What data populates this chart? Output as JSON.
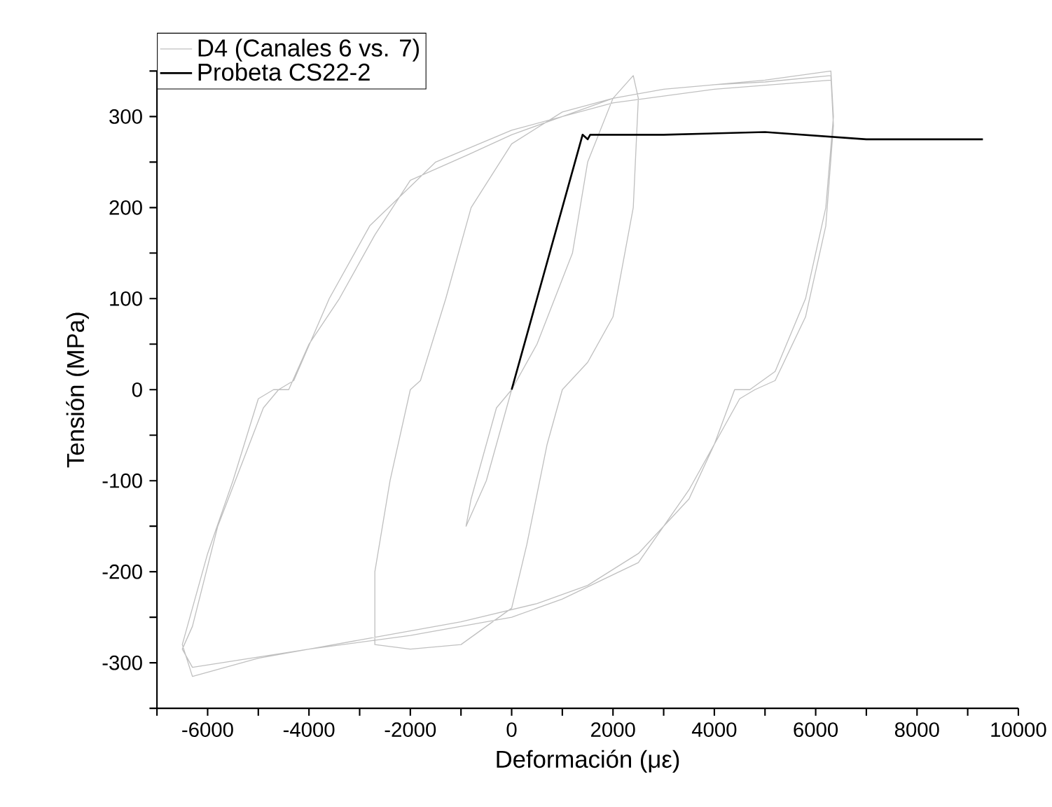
{
  "chart_data": {
    "type": "line",
    "xlabel": "Deformación (με)",
    "ylabel": "Tensión (MPa)",
    "xlim": [
      -7000,
      10000
    ],
    "ylim": [
      -350,
      350
    ],
    "xticks": [
      {
        "value": -7000,
        "label": null
      },
      -6000,
      {
        "value": -5000,
        "label": null
      },
      -4000,
      {
        "value": -3000,
        "label": null
      },
      -2000,
      {
        "value": -1000,
        "label": null
      },
      0,
      {
        "value": 1000,
        "label": null
      },
      2000,
      {
        "value": 3000,
        "label": null
      },
      4000,
      {
        "value": 5000,
        "label": null
      },
      6000,
      {
        "value": 7000,
        "label": null
      },
      8000,
      {
        "value": 9000,
        "label": null
      },
      10000
    ],
    "yticks": [
      {
        "value": -350,
        "label": null
      },
      -300,
      {
        "value": -250,
        "label": null
      },
      -200,
      {
        "value": -150,
        "label": null
      },
      -100,
      {
        "value": -50,
        "label": null
      },
      0,
      {
        "value": 50,
        "label": null
      },
      100,
      {
        "value": 150,
        "label": null
      },
      200,
      {
        "value": 250,
        "label": null
      },
      300,
      {
        "value": 350,
        "label": null
      }
    ],
    "grid": false,
    "legend": "top left",
    "marker": "none",
    "line_style": "solid",
    "series": [
      {
        "name": "D4 (Canales 6 vs. 7)",
        "color": "#c0c0c0",
        "x": [
          0,
          -500,
          -900,
          -800,
          -300,
          0,
          500,
          1200,
          1500,
          2000,
          2400,
          2500,
          2400,
          2000,
          1500,
          1000,
          700,
          300,
          0,
          -1000,
          -2000,
          -2700,
          -2700,
          -2400,
          -2000,
          -1800,
          -1300,
          -800,
          0,
          1000,
          2000,
          3000,
          4000,
          5000,
          6300,
          6350,
          6200,
          5800,
          5200,
          4700,
          4400,
          4000,
          3500,
          2500,
          1500,
          500,
          -1000,
          -2000,
          -3000,
          -4000,
          -5000,
          -6300,
          -6500,
          -6400,
          -6000,
          -5500,
          -5000,
          -4700,
          -4400,
          -4000,
          -3400,
          -2700,
          -2000,
          -860,
          0,
          1000,
          2000,
          3000,
          4000,
          5000,
          6300,
          6350,
          6200,
          5800,
          5200,
          4800,
          4500,
          4200,
          3500,
          2500,
          1000,
          0,
          -2000,
          -4000,
          -6300,
          -6500,
          -6300,
          -5800,
          -4900,
          -4600,
          -4300,
          -3600,
          -2800,
          -1500,
          0,
          2000,
          4000,
          6300
        ],
        "values": [
          0,
          -100,
          -150,
          -120,
          -20,
          0,
          50,
          150,
          250,
          320,
          345,
          320,
          200,
          80,
          30,
          0,
          -60,
          -170,
          -240,
          -280,
          -285,
          -280,
          -200,
          -100,
          0,
          10,
          100,
          200,
          270,
          305,
          320,
          330,
          335,
          340,
          350,
          300,
          200,
          100,
          20,
          0,
          0,
          -60,
          -120,
          -180,
          -215,
          -235,
          -255,
          -265,
          -275,
          -285,
          -295,
          -315,
          -280,
          -260,
          -180,
          -100,
          -10,
          0,
          0,
          50,
          100,
          170,
          230,
          258,
          280,
          300,
          320,
          330,
          335,
          338,
          345,
          290,
          180,
          80,
          10,
          0,
          -10,
          -40,
          -110,
          -190,
          -230,
          -250,
          -270,
          -285,
          -305,
          -285,
          -260,
          -150,
          -20,
          0,
          10,
          100,
          180,
          250,
          285,
          315,
          330,
          340
        ]
      },
      {
        "name": "Probeta CS22-2",
        "color": "#000000",
        "x": [
          0,
          1400,
          1500,
          1550,
          3000,
          5000,
          7000,
          9300
        ],
        "values": [
          0,
          280,
          275,
          280,
          280,
          283,
          275,
          275
        ]
      }
    ]
  }
}
